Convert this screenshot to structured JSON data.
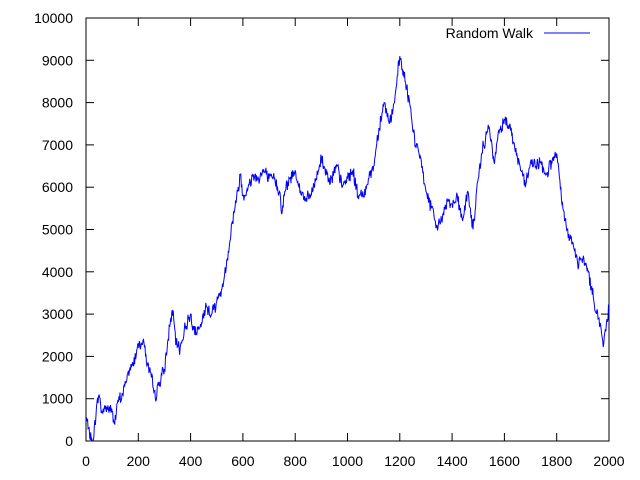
{
  "chart_data": {
    "type": "line",
    "title": "",
    "xlabel": "",
    "ylabel": "",
    "xlim": [
      0,
      2000
    ],
    "ylim": [
      0,
      10000
    ],
    "xticks": [
      0,
      200,
      400,
      600,
      800,
      1000,
      1200,
      1400,
      1600,
      1800,
      2000
    ],
    "yticks": [
      0,
      1000,
      2000,
      3000,
      4000,
      5000,
      6000,
      7000,
      8000,
      9000,
      10000
    ],
    "grid": false,
    "legend": {
      "position": "top-right"
    },
    "series": [
      {
        "name": "Random Walk",
        "color": "#0000ff",
        "points": [
          [
            0,
            500
          ],
          [
            10,
            300
          ],
          [
            20,
            0
          ],
          [
            30,
            100
          ],
          [
            40,
            800
          ],
          [
            50,
            1100
          ],
          [
            60,
            700
          ],
          [
            80,
            800
          ],
          [
            100,
            700
          ],
          [
            110,
            400
          ],
          [
            120,
            900
          ],
          [
            140,
            1100
          ],
          [
            160,
            1600
          ],
          [
            180,
            1800
          ],
          [
            200,
            2300
          ],
          [
            220,
            2400
          ],
          [
            235,
            1800
          ],
          [
            250,
            1500
          ],
          [
            265,
            1000
          ],
          [
            280,
            1400
          ],
          [
            300,
            1700
          ],
          [
            320,
            2700
          ],
          [
            330,
            3100
          ],
          [
            345,
            2300
          ],
          [
            360,
            2200
          ],
          [
            380,
            2700
          ],
          [
            400,
            3000
          ],
          [
            420,
            2500
          ],
          [
            440,
            2700
          ],
          [
            460,
            3200
          ],
          [
            480,
            3000
          ],
          [
            500,
            3300
          ],
          [
            520,
            3600
          ],
          [
            540,
            4300
          ],
          [
            560,
            5200
          ],
          [
            580,
            5900
          ],
          [
            590,
            6300
          ],
          [
            600,
            5800
          ],
          [
            620,
            6000
          ],
          [
            640,
            6300
          ],
          [
            660,
            6200
          ],
          [
            680,
            6400
          ],
          [
            700,
            6200
          ],
          [
            720,
            6200
          ],
          [
            740,
            5900
          ],
          [
            750,
            5400
          ],
          [
            760,
            5900
          ],
          [
            780,
            6200
          ],
          [
            800,
            6400
          ],
          [
            820,
            5900
          ],
          [
            840,
            5700
          ],
          [
            860,
            5800
          ],
          [
            880,
            6200
          ],
          [
            900,
            6700
          ],
          [
            920,
            6300
          ],
          [
            940,
            6200
          ],
          [
            960,
            6500
          ],
          [
            980,
            6000
          ],
          [
            1000,
            6200
          ],
          [
            1020,
            6400
          ],
          [
            1040,
            5800
          ],
          [
            1060,
            5800
          ],
          [
            1080,
            6200
          ],
          [
            1100,
            6500
          ],
          [
            1120,
            7400
          ],
          [
            1140,
            8000
          ],
          [
            1160,
            7500
          ],
          [
            1180,
            8000
          ],
          [
            1200,
            9100
          ],
          [
            1220,
            8500
          ],
          [
            1240,
            7900
          ],
          [
            1260,
            7000
          ],
          [
            1280,
            6700
          ],
          [
            1300,
            5900
          ],
          [
            1320,
            5500
          ],
          [
            1340,
            5100
          ],
          [
            1360,
            5200
          ],
          [
            1380,
            5700
          ],
          [
            1400,
            5600
          ],
          [
            1420,
            5800
          ],
          [
            1440,
            5200
          ],
          [
            1460,
            5900
          ],
          [
            1480,
            5000
          ],
          [
            1500,
            6200
          ],
          [
            1520,
            7000
          ],
          [
            1540,
            7400
          ],
          [
            1560,
            6600
          ],
          [
            1580,
            7300
          ],
          [
            1600,
            7600
          ],
          [
            1620,
            7500
          ],
          [
            1640,
            6900
          ],
          [
            1660,
            6500
          ],
          [
            1680,
            6000
          ],
          [
            1700,
            6600
          ],
          [
            1720,
            6500
          ],
          [
            1740,
            6600
          ],
          [
            1760,
            6300
          ],
          [
            1780,
            6600
          ],
          [
            1800,
            6800
          ],
          [
            1820,
            5600
          ],
          [
            1840,
            5000
          ],
          [
            1860,
            4700
          ],
          [
            1880,
            4200
          ],
          [
            1900,
            4300
          ],
          [
            1920,
            4000
          ],
          [
            1940,
            3400
          ],
          [
            1960,
            2900
          ],
          [
            1980,
            2300
          ],
          [
            2000,
            3200
          ]
        ]
      }
    ]
  }
}
